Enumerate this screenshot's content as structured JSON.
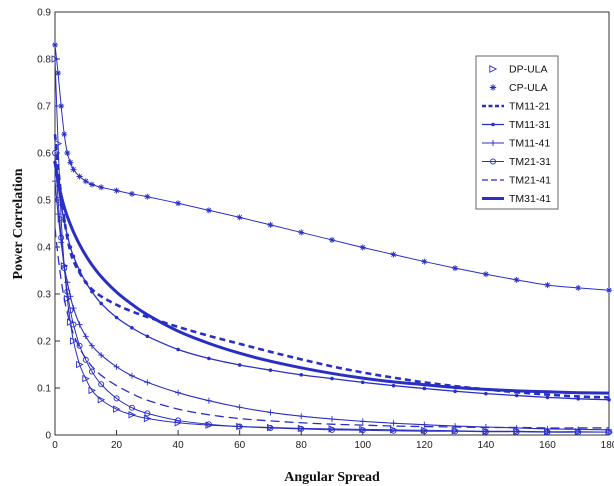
{
  "chart_data": {
    "type": "line",
    "title": "",
    "xlabel": "Angular Spread",
    "ylabel": "Power Correlation",
    "xlim": [
      0,
      180
    ],
    "ylim": [
      0,
      0.9
    ],
    "x_ticks": [
      0,
      20,
      40,
      60,
      80,
      100,
      120,
      140,
      160,
      180
    ],
    "y_ticks": [
      0,
      0.1,
      0.2,
      0.3,
      0.4,
      0.5,
      0.6,
      0.7,
      0.8,
      0.9
    ],
    "grid": false,
    "legend_position": "top-right",
    "color": "#2a2fc4",
    "x": [
      0,
      1,
      2,
      3,
      4,
      5,
      6,
      8,
      10,
      12,
      15,
      20,
      25,
      30,
      40,
      50,
      60,
      70,
      80,
      90,
      100,
      110,
      120,
      130,
      140,
      150,
      160,
      170,
      180
    ],
    "series": [
      {
        "name": "DP-ULA",
        "style": "triangle-markers",
        "values": [
          0.8,
          0.62,
          0.46,
          0.36,
          0.29,
          0.24,
          0.2,
          0.15,
          0.12,
          0.095,
          0.075,
          0.055,
          0.043,
          0.035,
          0.026,
          0.021,
          0.018,
          0.016,
          0.014,
          0.013,
          0.012,
          0.011,
          0.01,
          0.009,
          0.008,
          0.008,
          0.007,
          0.007,
          0.006
        ]
      },
      {
        "name": "CP-ULA",
        "style": "star-markers",
        "values": [
          0.83,
          0.77,
          0.7,
          0.64,
          0.6,
          0.58,
          0.565,
          0.55,
          0.54,
          0.533,
          0.527,
          0.52,
          0.513,
          0.507,
          0.493,
          0.478,
          0.463,
          0.447,
          0.431,
          0.415,
          0.399,
          0.384,
          0.369,
          0.355,
          0.342,
          0.33,
          0.319,
          0.313,
          0.308
        ]
      },
      {
        "name": "TM11-21",
        "style": "dashed-bold",
        "values": [
          0.64,
          0.57,
          0.51,
          0.46,
          0.42,
          0.39,
          0.37,
          0.345,
          0.325,
          0.31,
          0.295,
          0.277,
          0.263,
          0.251,
          0.23,
          0.211,
          0.194,
          0.177,
          0.161,
          0.146,
          0.133,
          0.122,
          0.112,
          0.104,
          0.097,
          0.091,
          0.086,
          0.082,
          0.08
        ]
      },
      {
        "name": "TM11-31",
        "style": "dot-markers",
        "values": [
          0.58,
          0.53,
          0.49,
          0.455,
          0.425,
          0.4,
          0.38,
          0.35,
          0.325,
          0.305,
          0.28,
          0.25,
          0.228,
          0.21,
          0.182,
          0.163,
          0.149,
          0.138,
          0.128,
          0.12,
          0.112,
          0.105,
          0.099,
          0.093,
          0.088,
          0.084,
          0.08,
          0.077,
          0.075
        ]
      },
      {
        "name": "TM11-41",
        "style": "plus-markers",
        "values": [
          0.54,
          0.47,
          0.41,
          0.36,
          0.325,
          0.295,
          0.27,
          0.235,
          0.21,
          0.19,
          0.17,
          0.145,
          0.126,
          0.112,
          0.09,
          0.073,
          0.059,
          0.048,
          0.04,
          0.034,
          0.029,
          0.025,
          0.022,
          0.019,
          0.017,
          0.015,
          0.013,
          0.012,
          0.011
        ]
      },
      {
        "name": "TM21-31",
        "style": "circle-markers",
        "values": [
          0.6,
          0.5,
          0.42,
          0.355,
          0.305,
          0.265,
          0.235,
          0.19,
          0.16,
          0.135,
          0.108,
          0.078,
          0.058,
          0.046,
          0.031,
          0.023,
          0.018,
          0.015,
          0.013,
          0.011,
          0.01,
          0.009,
          0.008,
          0.008,
          0.007,
          0.007,
          0.006,
          0.006,
          0.006
        ]
      },
      {
        "name": "TM21-41",
        "style": "dashed-thin",
        "values": [
          0.44,
          0.38,
          0.33,
          0.29,
          0.26,
          0.235,
          0.215,
          0.185,
          0.163,
          0.146,
          0.127,
          0.105,
          0.088,
          0.074,
          0.055,
          0.043,
          0.035,
          0.03,
          0.026,
          0.023,
          0.021,
          0.019,
          0.018,
          0.017,
          0.016,
          0.016,
          0.015,
          0.015,
          0.015
        ]
      },
      {
        "name": "TM31-41",
        "style": "solid-bold",
        "values": [
          0.58,
          0.54,
          0.51,
          0.485,
          0.465,
          0.448,
          0.432,
          0.405,
          0.382,
          0.362,
          0.337,
          0.304,
          0.278,
          0.256,
          0.221,
          0.195,
          0.174,
          0.157,
          0.143,
          0.131,
          0.121,
          0.113,
          0.107,
          0.101,
          0.097,
          0.094,
          0.092,
          0.09,
          0.089
        ]
      }
    ]
  }
}
